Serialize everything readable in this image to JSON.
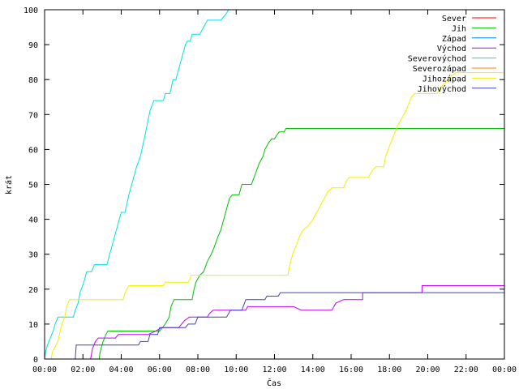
{
  "chart_data": {
    "type": "line",
    "step": true,
    "xlabel": "Čas",
    "ylabel": "krát",
    "xlim": [
      0,
      24
    ],
    "ylim": [
      0,
      100
    ],
    "x_ticks": [
      0,
      2,
      4,
      6,
      8,
      10,
      12,
      14,
      16,
      18,
      20,
      22,
      24
    ],
    "x_tick_labels": [
      "00:00",
      "02:00",
      "04:00",
      "06:00",
      "08:00",
      "10:00",
      "12:00",
      "14:00",
      "16:00",
      "18:00",
      "20:00",
      "22:00",
      "00:00"
    ],
    "y_ticks": [
      0,
      10,
      20,
      30,
      40,
      50,
      60,
      70,
      80,
      90,
      100
    ],
    "y_tick_labels": [
      "0",
      "10",
      "20",
      "30",
      "40",
      "50",
      "60",
      "70",
      "80",
      "90",
      "100"
    ],
    "legend_position": "top-right",
    "series": [
      {
        "name": "Sever",
        "color": "#ff0000",
        "points": []
      },
      {
        "name": "Jih",
        "color": "#00c000",
        "points": [
          [
            0,
            0
          ],
          [
            2.85,
            0
          ],
          [
            2.9,
            2
          ],
          [
            3.05,
            5
          ],
          [
            3.2,
            7
          ],
          [
            3.3,
            8
          ],
          [
            5.2,
            8
          ],
          [
            6.0,
            8
          ],
          [
            6.3,
            10
          ],
          [
            6.5,
            12
          ],
          [
            6.6,
            15
          ],
          [
            6.75,
            17
          ],
          [
            7.7,
            17
          ],
          [
            7.8,
            20
          ],
          [
            7.9,
            22
          ],
          [
            8.1,
            24
          ],
          [
            8.3,
            25
          ],
          [
            8.5,
            28
          ],
          [
            8.7,
            30
          ],
          [
            8.85,
            32
          ],
          [
            9.05,
            35
          ],
          [
            9.2,
            37
          ],
          [
            9.4,
            41
          ],
          [
            9.55,
            44
          ],
          [
            9.65,
            46
          ],
          [
            9.8,
            47
          ],
          [
            10.15,
            47
          ],
          [
            10.3,
            50
          ],
          [
            10.8,
            50
          ],
          [
            11.0,
            53
          ],
          [
            11.2,
            56
          ],
          [
            11.4,
            58
          ],
          [
            11.5,
            60
          ],
          [
            11.7,
            62
          ],
          [
            11.85,
            63
          ],
          [
            12.0,
            63
          ],
          [
            12.1,
            64
          ],
          [
            12.25,
            65
          ],
          [
            12.5,
            65
          ],
          [
            12.6,
            66
          ],
          [
            24,
            66
          ]
        ]
      },
      {
        "name": "Západ",
        "color": "#0080ff",
        "points": []
      },
      {
        "name": "Východ",
        "color": "#c000ff",
        "points": [
          [
            0,
            0
          ],
          [
            2.4,
            0
          ],
          [
            2.5,
            3
          ],
          [
            2.65,
            5
          ],
          [
            2.8,
            6
          ],
          [
            3.7,
            6
          ],
          [
            3.85,
            7
          ],
          [
            5.4,
            7
          ],
          [
            5.8,
            8
          ],
          [
            6.1,
            9
          ],
          [
            7.0,
            9
          ],
          [
            7.3,
            11
          ],
          [
            7.55,
            12
          ],
          [
            8.5,
            12
          ],
          [
            8.6,
            13
          ],
          [
            8.8,
            14
          ],
          [
            10.5,
            14
          ],
          [
            10.6,
            15
          ],
          [
            12.5,
            15
          ],
          [
            13.0,
            15
          ],
          [
            13.4,
            14
          ],
          [
            15.0,
            14
          ],
          [
            15.2,
            16
          ],
          [
            15.6,
            17
          ],
          [
            16.6,
            17
          ],
          [
            16.6,
            19
          ],
          [
            19.7,
            19
          ],
          [
            19.7,
            21
          ],
          [
            24,
            21
          ]
        ]
      },
      {
        "name": "Severovýchod",
        "color": "#00e0e0",
        "points": [
          [
            0,
            0
          ],
          [
            0.05,
            2
          ],
          [
            0.15,
            4
          ],
          [
            0.3,
            6
          ],
          [
            0.45,
            8
          ],
          [
            0.55,
            10
          ],
          [
            0.7,
            12
          ],
          [
            1.5,
            12
          ],
          [
            1.6,
            14
          ],
          [
            1.75,
            16
          ],
          [
            1.85,
            19
          ],
          [
            2.05,
            22
          ],
          [
            2.2,
            25
          ],
          [
            2.45,
            25
          ],
          [
            2.6,
            27
          ],
          [
            3.25,
            27
          ],
          [
            3.45,
            31
          ],
          [
            3.65,
            35
          ],
          [
            3.8,
            38
          ],
          [
            4.0,
            42
          ],
          [
            4.2,
            42
          ],
          [
            4.4,
            47
          ],
          [
            4.6,
            51
          ],
          [
            4.8,
            55
          ],
          [
            5.0,
            58
          ],
          [
            5.2,
            63
          ],
          [
            5.35,
            67
          ],
          [
            5.5,
            71
          ],
          [
            5.7,
            74
          ],
          [
            6.2,
            74
          ],
          [
            6.3,
            76
          ],
          [
            6.55,
            76
          ],
          [
            6.7,
            80
          ],
          [
            6.85,
            80
          ],
          [
            7.05,
            84
          ],
          [
            7.2,
            87
          ],
          [
            7.35,
            90
          ],
          [
            7.45,
            91
          ],
          [
            7.6,
            91
          ],
          [
            7.7,
            93
          ],
          [
            8.1,
            93
          ],
          [
            8.3,
            95
          ],
          [
            8.5,
            97
          ],
          [
            9.2,
            97
          ],
          [
            9.35,
            98
          ],
          [
            9.5,
            99
          ],
          [
            9.6,
            100
          ],
          [
            10.2,
            100
          ]
        ]
      },
      {
        "name": "Severozápad",
        "color": "#ff8000",
        "points": []
      },
      {
        "name": "Jihozápad",
        "color": "#f0f000",
        "points": [
          [
            0,
            0
          ],
          [
            0.35,
            0
          ],
          [
            0.4,
            2
          ],
          [
            0.5,
            3
          ],
          [
            0.7,
            5
          ],
          [
            0.85,
            9
          ],
          [
            1.05,
            12
          ],
          [
            1.15,
            15
          ],
          [
            1.3,
            17
          ],
          [
            4.1,
            17
          ],
          [
            4.2,
            19
          ],
          [
            4.4,
            21
          ],
          [
            6.2,
            21
          ],
          [
            6.3,
            22
          ],
          [
            7.5,
            22
          ],
          [
            7.6,
            23
          ],
          [
            7.65,
            24
          ],
          [
            12.7,
            24
          ],
          [
            12.8,
            27
          ],
          [
            12.95,
            30
          ],
          [
            13.1,
            32
          ],
          [
            13.3,
            35
          ],
          [
            13.5,
            37
          ],
          [
            13.75,
            38
          ],
          [
            14.0,
            40
          ],
          [
            14.2,
            42
          ],
          [
            14.4,
            44
          ],
          [
            14.6,
            46
          ],
          [
            14.8,
            48
          ],
          [
            15.0,
            49
          ],
          [
            15.6,
            49
          ],
          [
            15.75,
            51
          ],
          [
            15.9,
            52
          ],
          [
            16.9,
            52
          ],
          [
            17.1,
            54
          ],
          [
            17.3,
            55
          ],
          [
            17.7,
            55
          ],
          [
            17.8,
            58
          ],
          [
            18.0,
            61
          ],
          [
            18.15,
            63
          ],
          [
            18.3,
            65
          ],
          [
            18.45,
            67
          ],
          [
            18.65,
            69
          ],
          [
            18.85,
            71
          ],
          [
            19.0,
            73
          ],
          [
            19.15,
            75
          ],
          [
            19.3,
            76
          ],
          [
            20.5,
            76
          ],
          [
            20.7,
            78
          ],
          [
            20.9,
            79
          ],
          [
            21.2,
            81
          ],
          [
            21.5,
            82
          ],
          [
            24,
            82
          ]
        ]
      },
      {
        "name": "Jihovýchod",
        "color": "#4040c0",
        "points": [
          [
            0,
            0
          ],
          [
            1.6,
            0
          ],
          [
            1.65,
            4
          ],
          [
            4.9,
            4
          ],
          [
            5.0,
            5
          ],
          [
            5.4,
            5
          ],
          [
            5.5,
            7
          ],
          [
            5.9,
            7
          ],
          [
            6.0,
            9
          ],
          [
            7.35,
            9
          ],
          [
            7.5,
            10
          ],
          [
            7.85,
            10
          ],
          [
            8.0,
            12
          ],
          [
            9.5,
            12
          ],
          [
            9.7,
            14
          ],
          [
            10.3,
            14
          ],
          [
            10.5,
            17
          ],
          [
            11.5,
            17
          ],
          [
            11.6,
            18
          ],
          [
            12.2,
            18
          ],
          [
            12.3,
            19
          ],
          [
            24,
            19
          ]
        ]
      }
    ]
  }
}
